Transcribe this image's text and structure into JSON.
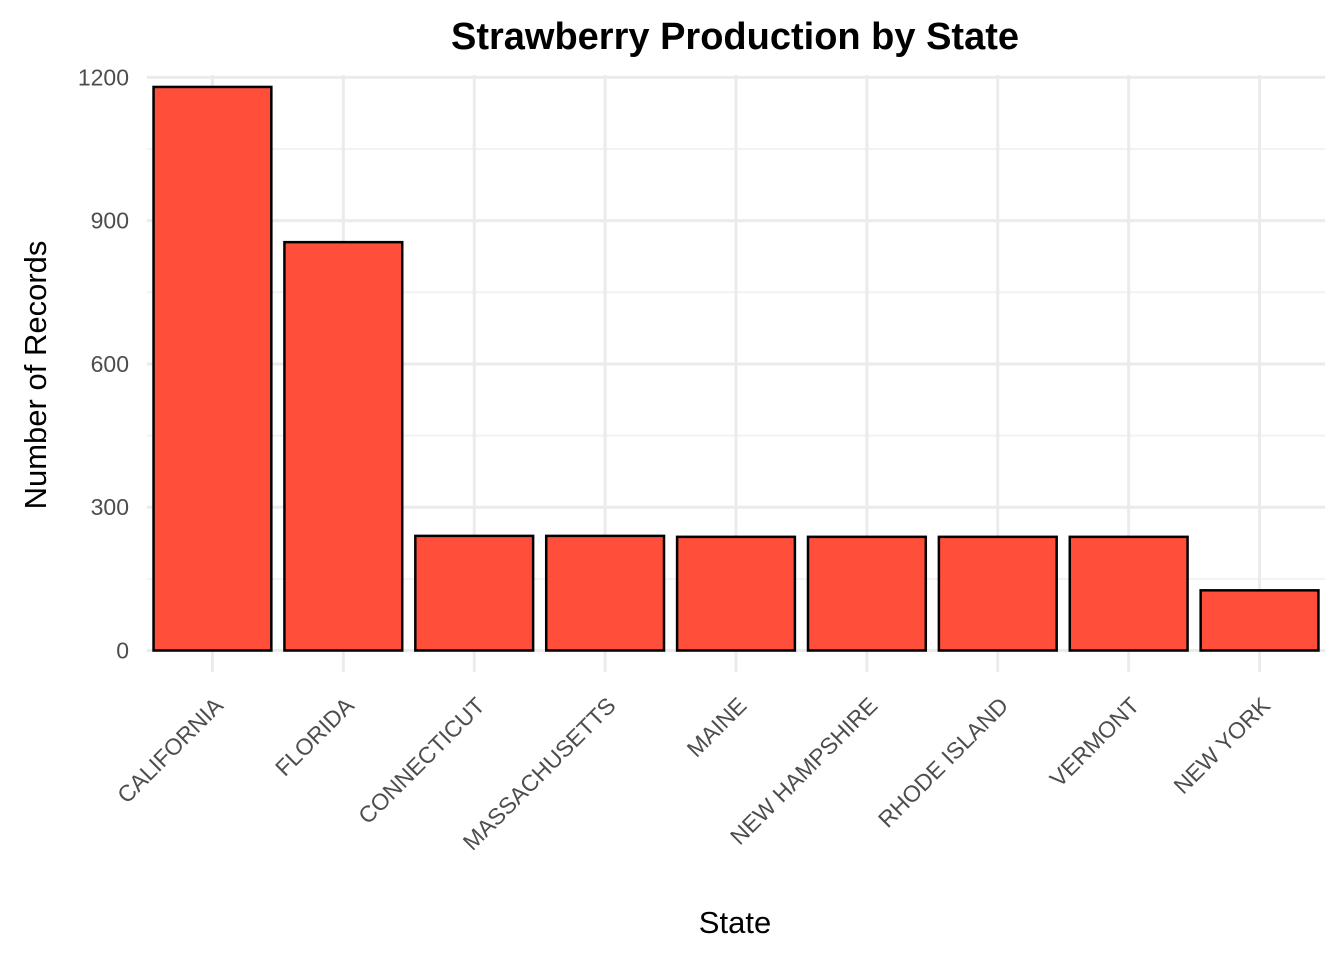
{
  "chart_data": {
    "type": "bar",
    "title": "Strawberry Production by State",
    "xlabel": "State",
    "ylabel": "Number of Records",
    "categories": [
      "CALIFORNIA",
      "FLORIDA",
      "CONNECTICUT",
      "MASSACHUSETTS",
      "MAINE",
      "NEW HAMPSHIRE",
      "RHODE ISLAND",
      "VERMONT",
      "NEW YORK"
    ],
    "values": [
      1180,
      855,
      240,
      240,
      238,
      238,
      238,
      238,
      126
    ],
    "ylim": [
      -45,
      1205
    ],
    "yticks": [
      0,
      300,
      600,
      900,
      1200
    ],
    "yticklabels": [
      "0",
      "300",
      "600",
      "900",
      "1200"
    ],
    "grid": true,
    "legend": "none",
    "bar_color": "#FF4F3B",
    "bar_outline": "#000000"
  }
}
